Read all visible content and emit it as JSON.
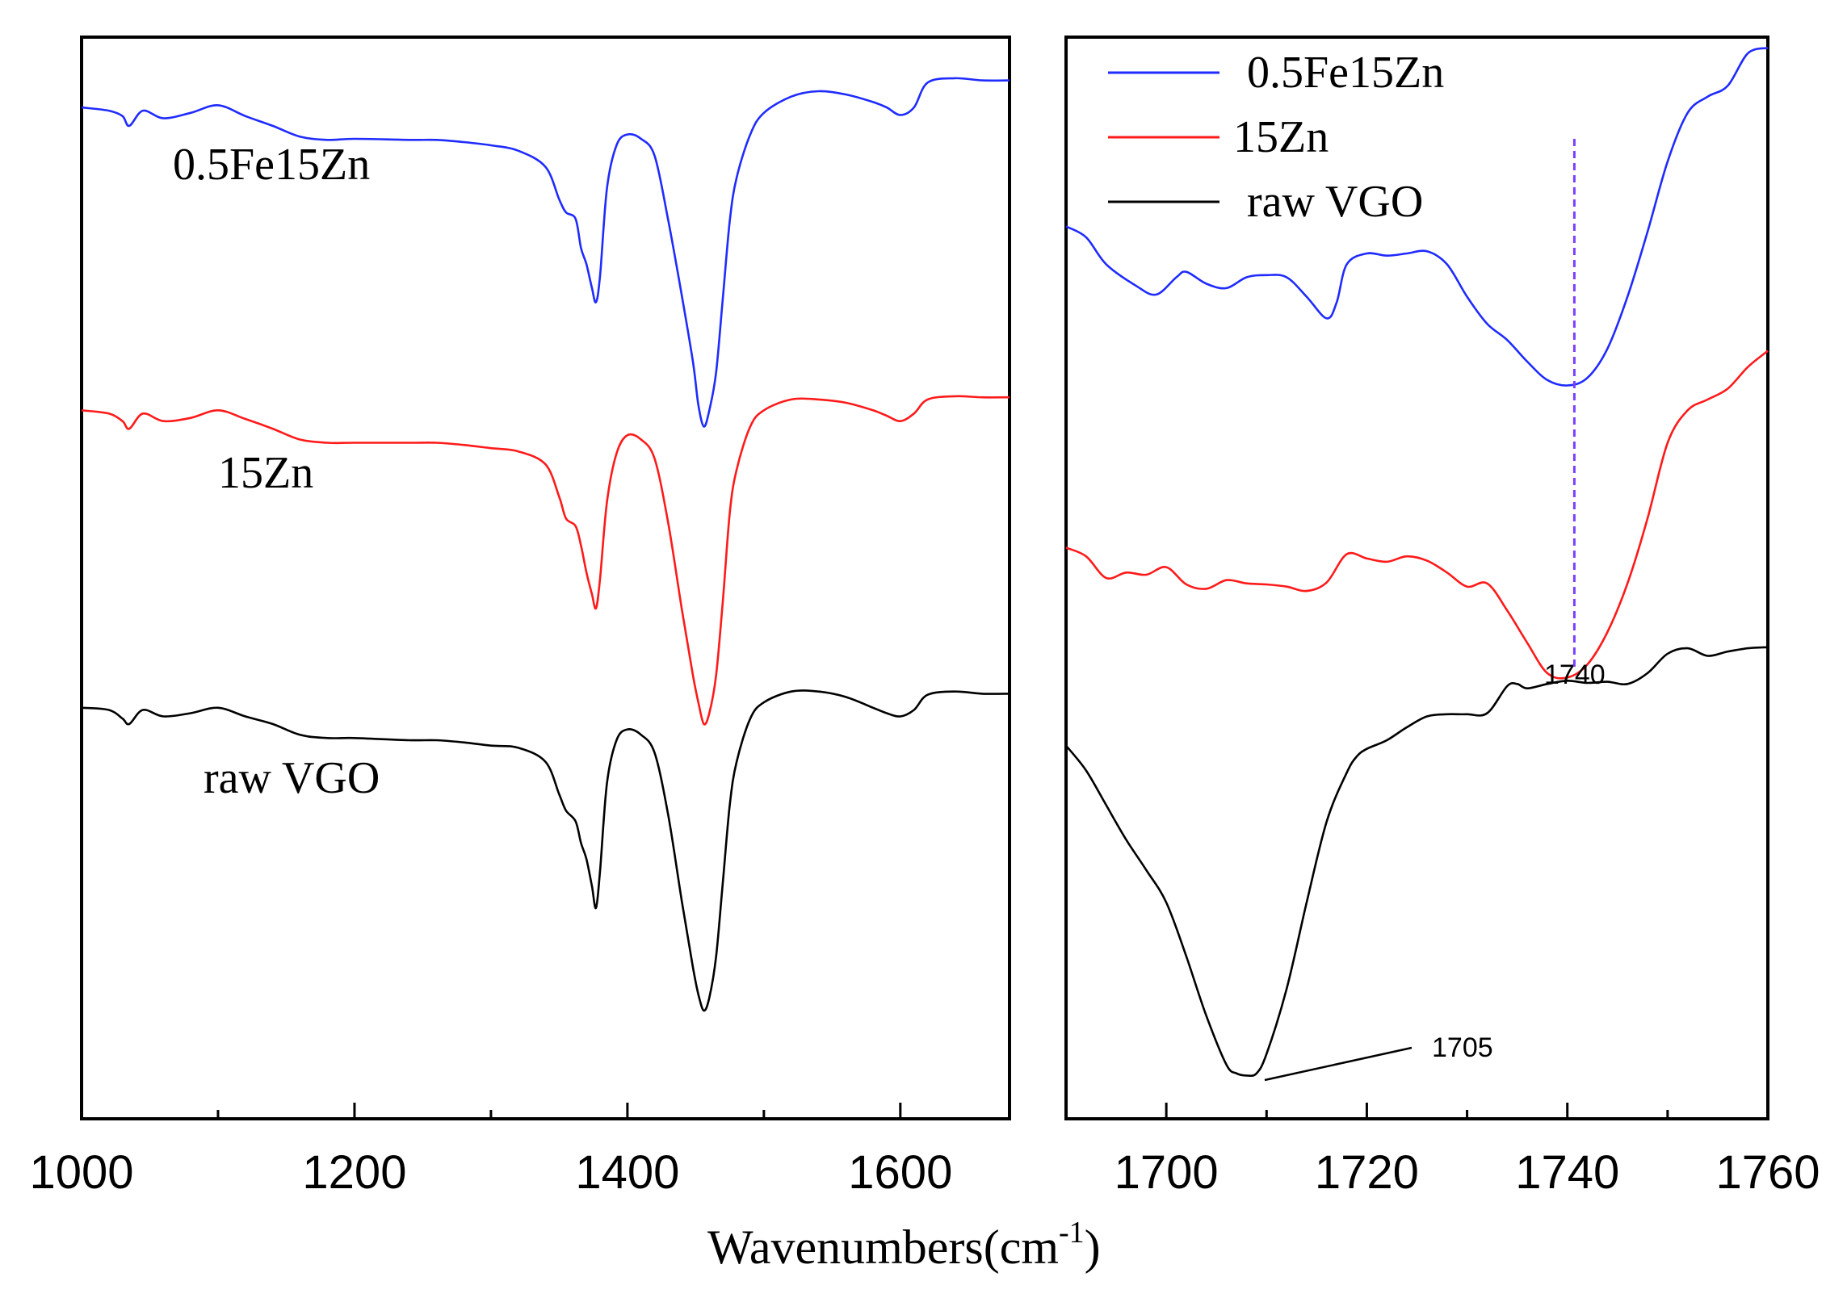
{
  "colors": {
    "blue": "#1f2bff",
    "red": "#ff1a1a",
    "black": "#000000",
    "marker": "#7b3fff"
  },
  "chart_data": [
    {
      "type": "line",
      "panel": "left",
      "xlabel": "Wavenumbers(cm",
      "xlabel_sup": "-1",
      "xlabel_close": ")",
      "xlim": [
        1000,
        1680
      ],
      "x_ticks": [
        1000,
        1200,
        1400,
        1600
      ],
      "x_tick_labels": [
        "1000",
        "1200",
        "1400",
        "1600"
      ],
      "x_minor_ticks": [
        1100,
        1300,
        1500
      ],
      "ylabel": "",
      "ylim": [
        0,
        1
      ],
      "grid": false,
      "series": [
        {
          "name": "0.5Fe15Zn",
          "color": "blue",
          "x": [
            1000,
            1020,
            1030,
            1035,
            1045,
            1060,
            1080,
            1100,
            1120,
            1140,
            1160,
            1180,
            1200,
            1240,
            1260,
            1280,
            1300,
            1320,
            1340,
            1350,
            1355,
            1362,
            1366,
            1370,
            1374,
            1377,
            1380,
            1385,
            1392,
            1400,
            1410,
            1420,
            1430,
            1440,
            1448,
            1452,
            1456,
            1460,
            1465,
            1470,
            1475,
            1480,
            1490,
            1500,
            1520,
            1540,
            1560,
            1580,
            1590,
            1600,
            1610,
            1620,
            1640,
            1660,
            1680
          ],
          "y": [
            0.935,
            0.932,
            0.927,
            0.918,
            0.932,
            0.925,
            0.93,
            0.937,
            0.927,
            0.918,
            0.908,
            0.905,
            0.906,
            0.905,
            0.905,
            0.903,
            0.9,
            0.895,
            0.88,
            0.85,
            0.838,
            0.832,
            0.805,
            0.79,
            0.768,
            0.755,
            0.78,
            0.86,
            0.9,
            0.91,
            0.906,
            0.89,
            0.83,
            0.76,
            0.7,
            0.66,
            0.64,
            0.655,
            0.69,
            0.76,
            0.83,
            0.87,
            0.91,
            0.93,
            0.945,
            0.95,
            0.947,
            0.94,
            0.935,
            0.928,
            0.935,
            0.958,
            0.962,
            0.96,
            0.96
          ]
        },
        {
          "name": "15Zn",
          "color": "red",
          "x": [
            1000,
            1020,
            1030,
            1035,
            1045,
            1060,
            1080,
            1100,
            1120,
            1140,
            1160,
            1180,
            1200,
            1240,
            1260,
            1280,
            1300,
            1320,
            1340,
            1350,
            1355,
            1362,
            1366,
            1370,
            1374,
            1377,
            1380,
            1385,
            1392,
            1400,
            1410,
            1420,
            1430,
            1440,
            1448,
            1452,
            1456,
            1460,
            1465,
            1470,
            1475,
            1480,
            1490,
            1500,
            1520,
            1540,
            1560,
            1580,
            1590,
            1600,
            1610,
            1620,
            1640,
            1660,
            1680
          ],
          "y": [
            0.655,
            0.652,
            0.645,
            0.638,
            0.652,
            0.645,
            0.648,
            0.655,
            0.647,
            0.638,
            0.628,
            0.625,
            0.625,
            0.625,
            0.625,
            0.623,
            0.62,
            0.617,
            0.605,
            0.575,
            0.555,
            0.548,
            0.53,
            0.505,
            0.485,
            0.472,
            0.5,
            0.57,
            0.615,
            0.632,
            0.628,
            0.61,
            0.55,
            0.47,
            0.41,
            0.385,
            0.365,
            0.375,
            0.41,
            0.48,
            0.56,
            0.6,
            0.64,
            0.655,
            0.665,
            0.665,
            0.662,
            0.655,
            0.65,
            0.645,
            0.652,
            0.665,
            0.668,
            0.667,
            0.667
          ]
        },
        {
          "name": "raw VGO",
          "color": "black",
          "x": [
            1000,
            1020,
            1030,
            1035,
            1045,
            1060,
            1080,
            1100,
            1120,
            1140,
            1160,
            1180,
            1200,
            1240,
            1260,
            1280,
            1300,
            1320,
            1340,
            1350,
            1355,
            1362,
            1366,
            1370,
            1374,
            1377,
            1380,
            1385,
            1392,
            1400,
            1410,
            1420,
            1430,
            1440,
            1448,
            1452,
            1456,
            1460,
            1465,
            1470,
            1475,
            1480,
            1490,
            1500,
            1520,
            1540,
            1560,
            1580,
            1590,
            1600,
            1610,
            1620,
            1640,
            1660,
            1680
          ],
          "y": [
            0.38,
            0.378,
            0.37,
            0.365,
            0.378,
            0.372,
            0.375,
            0.38,
            0.372,
            0.365,
            0.355,
            0.352,
            0.352,
            0.35,
            0.35,
            0.348,
            0.345,
            0.343,
            0.33,
            0.3,
            0.285,
            0.275,
            0.255,
            0.24,
            0.215,
            0.195,
            0.23,
            0.31,
            0.35,
            0.36,
            0.355,
            0.338,
            0.28,
            0.2,
            0.14,
            0.115,
            0.1,
            0.112,
            0.15,
            0.22,
            0.29,
            0.33,
            0.37,
            0.385,
            0.395,
            0.395,
            0.39,
            0.38,
            0.375,
            0.372,
            0.378,
            0.392,
            0.395,
            0.393,
            0.393
          ]
        }
      ],
      "annotations": [
        {
          "text": "0.5Fe15Zn",
          "series": "0.5Fe15Zn"
        },
        {
          "text": "15Zn",
          "series": "15Zn"
        },
        {
          "text": "raw VGO",
          "series": "raw VGO"
        }
      ]
    },
    {
      "type": "line",
      "panel": "right",
      "xlim": [
        1690,
        1760
      ],
      "x_ticks": [
        1700,
        1720,
        1740,
        1760
      ],
      "x_tick_labels": [
        "1700",
        "1720",
        "1740",
        "1760"
      ],
      "x_minor_ticks": [
        1690,
        1710,
        1730,
        1750
      ],
      "ylim": [
        0,
        1
      ],
      "grid": false,
      "legend": {
        "placement": "top-left",
        "entries": [
          "0.5Fe15Zn",
          "15Zn",
          "raw VGO"
        ]
      },
      "series": [
        {
          "name": "0.5Fe15Zn",
          "color": "blue",
          "x": [
            1690,
            1692,
            1694,
            1697,
            1699,
            1701,
            1702,
            1704,
            1706,
            1708,
            1710,
            1712,
            1714,
            1716,
            1717,
            1718,
            1720,
            1722,
            1724,
            1726,
            1728,
            1730,
            1732,
            1734,
            1736,
            1738,
            1740,
            1742,
            1744,
            1746,
            1748,
            1750,
            1752,
            1754,
            1756,
            1758,
            1760
          ],
          "y": [
            0.825,
            0.815,
            0.79,
            0.77,
            0.762,
            0.778,
            0.783,
            0.772,
            0.768,
            0.778,
            0.78,
            0.778,
            0.76,
            0.74,
            0.755,
            0.79,
            0.8,
            0.798,
            0.8,
            0.802,
            0.79,
            0.76,
            0.735,
            0.72,
            0.7,
            0.683,
            0.678,
            0.685,
            0.712,
            0.76,
            0.82,
            0.885,
            0.93,
            0.945,
            0.955,
            0.985,
            0.99
          ]
        },
        {
          "name": "15Zn",
          "color": "red",
          "x": [
            1690,
            1692,
            1694,
            1696,
            1698,
            1700,
            1702,
            1704,
            1706,
            1708,
            1710,
            1712,
            1714,
            1716,
            1718,
            1720,
            1722,
            1724,
            1726,
            1728,
            1730,
            1732,
            1734,
            1736,
            1738,
            1740,
            1742,
            1744,
            1746,
            1748,
            1750,
            1752,
            1754,
            1756,
            1758,
            1760
          ],
          "y": [
            0.528,
            0.52,
            0.5,
            0.505,
            0.503,
            0.51,
            0.494,
            0.49,
            0.498,
            0.495,
            0.494,
            0.492,
            0.488,
            0.496,
            0.522,
            0.518,
            0.515,
            0.52,
            0.516,
            0.505,
            0.492,
            0.495,
            0.47,
            0.44,
            0.412,
            0.408,
            0.42,
            0.45,
            0.495,
            0.555,
            0.625,
            0.655,
            0.665,
            0.675,
            0.695,
            0.71
          ]
        },
        {
          "name": "raw VGO",
          "color": "black",
          "x": [
            1690,
            1692,
            1694,
            1696,
            1698,
            1700,
            1702,
            1704,
            1706,
            1707,
            1708,
            1709,
            1710,
            1712,
            1714,
            1716,
            1718,
            1719,
            1720,
            1722,
            1724,
            1726,
            1728,
            1730,
            1732,
            1734,
            1735,
            1736,
            1738,
            1740,
            1742,
            1744,
            1746,
            1748,
            1750,
            1752,
            1754,
            1756,
            1758,
            1760
          ],
          "y": [
            0.345,
            0.322,
            0.29,
            0.258,
            0.23,
            0.2,
            0.15,
            0.095,
            0.05,
            0.042,
            0.04,
            0.042,
            0.06,
            0.12,
            0.2,
            0.275,
            0.32,
            0.335,
            0.342,
            0.35,
            0.362,
            0.372,
            0.374,
            0.374,
            0.375,
            0.4,
            0.402,
            0.398,
            0.402,
            0.405,
            0.403,
            0.404,
            0.402,
            0.412,
            0.43,
            0.435,
            0.428,
            0.432,
            0.435,
            0.436
          ]
        }
      ],
      "annotations": [
        {
          "text": "1740",
          "x": 1740
        },
        {
          "text": "1705",
          "x": 1709
        }
      ],
      "marker_line": {
        "x": 1740.7,
        "style": "dashed",
        "color": "marker"
      }
    }
  ]
}
